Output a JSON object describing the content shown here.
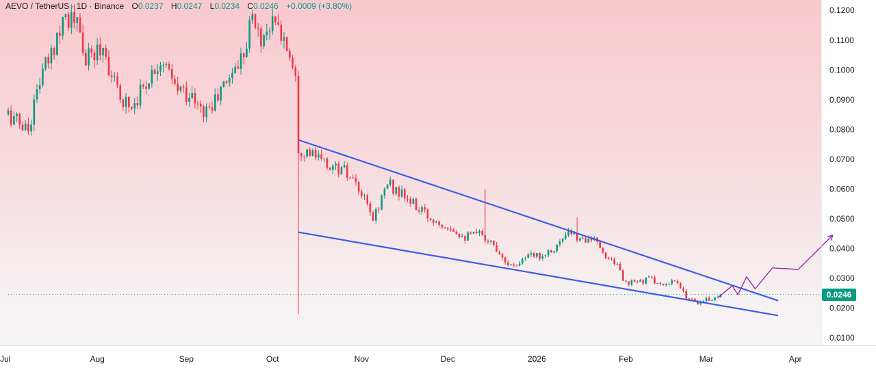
{
  "legend": {
    "symbol": "AEVO / TetherUS · 1D · Binance",
    "o_label": "O",
    "o_value": "0.0237",
    "h_label": "H",
    "h_value": "0.0247",
    "l_label": "L",
    "l_value": "0.0234",
    "c_label": "C",
    "c_value": "0.0246",
    "change": "+0.0009 (+3.80%)"
  },
  "last_price": "0.0246",
  "colors": {
    "up": "#089981",
    "down": "#f23645",
    "trendline": "#3d5ce6",
    "projection": "#9c27b0",
    "badge": "#089981"
  },
  "chart_data": {
    "type": "candlestick",
    "interval": "1D",
    "x_range": [
      "2025-07-01",
      "2026-04-10"
    ],
    "ylim": [
      0.0075,
      0.1235
    ],
    "y_ticks": [
      0.12,
      0.11,
      0.1,
      0.09,
      0.08,
      0.07,
      0.06,
      0.05,
      0.04,
      0.03,
      0.02,
      0.01
    ],
    "y_tick_labels": [
      "0.1200",
      "0.1100",
      "0.1000",
      "0.0900",
      "0.0800",
      "0.0700",
      "0.0600",
      "0.0500",
      "0.0400",
      "0.0300",
      "0.0200",
      "0.0100"
    ],
    "x_ticks": [
      {
        "label": "Jul",
        "date": "2025-07-01"
      },
      {
        "label": "Aug",
        "date": "2025-08-01"
      },
      {
        "label": "Sep",
        "date": "2025-09-01"
      },
      {
        "label": "Oct",
        "date": "2025-10-01"
      },
      {
        "label": "Nov",
        "date": "2025-11-01"
      },
      {
        "label": "Dec",
        "date": "2025-12-01"
      },
      {
        "label": "2026",
        "date": "2026-01-01"
      },
      {
        "label": "Feb",
        "date": "2026-02-01"
      },
      {
        "label": "Mar",
        "date": "2026-03-01"
      },
      {
        "label": "Apr",
        "date": "2026-04-01"
      }
    ],
    "close_path": [
      [
        "2025-07-01",
        0.085
      ],
      [
        "2025-07-08",
        0.08
      ],
      [
        "2025-07-12",
        0.097
      ],
      [
        "2025-07-16",
        0.105
      ],
      [
        "2025-07-20",
        0.119
      ],
      [
        "2025-07-25",
        0.115
      ],
      [
        "2025-07-28",
        0.103
      ],
      [
        "2025-08-03",
        0.108
      ],
      [
        "2025-08-08",
        0.092
      ],
      [
        "2025-08-13",
        0.088
      ],
      [
        "2025-08-18",
        0.096
      ],
      [
        "2025-08-23",
        0.104
      ],
      [
        "2025-08-28",
        0.094
      ],
      [
        "2025-09-02",
        0.092
      ],
      [
        "2025-09-06",
        0.086
      ],
      [
        "2025-09-10",
        0.088
      ],
      [
        "2025-09-16",
        0.098
      ],
      [
        "2025-09-20",
        0.104
      ],
      [
        "2025-09-24",
        0.118
      ],
      [
        "2025-09-27",
        0.11
      ],
      [
        "2025-09-30",
        0.116
      ],
      [
        "2025-10-03",
        0.114
      ],
      [
        "2025-10-06",
        0.108
      ],
      [
        "2025-10-09",
        0.1
      ],
      [
        "2025-10-10",
        0.074
      ],
      [
        "2025-10-14",
        0.072
      ],
      [
        "2025-10-20",
        0.068
      ],
      [
        "2025-10-26",
        0.066
      ],
      [
        "2025-11-01",
        0.058
      ],
      [
        "2025-11-05",
        0.05
      ],
      [
        "2025-11-10",
        0.062
      ],
      [
        "2025-11-15",
        0.058
      ],
      [
        "2025-11-20",
        0.054
      ],
      [
        "2025-11-25",
        0.05
      ],
      [
        "2025-12-01",
        0.048
      ],
      [
        "2025-12-07",
        0.044
      ],
      [
        "2025-12-13",
        0.045
      ],
      [
        "2025-12-19",
        0.039
      ],
      [
        "2025-12-23",
        0.034
      ],
      [
        "2025-12-28",
        0.037
      ],
      [
        "2026-01-03",
        0.038
      ],
      [
        "2026-01-08",
        0.041
      ],
      [
        "2026-01-12",
        0.045
      ],
      [
        "2026-01-16",
        0.043
      ],
      [
        "2026-01-20",
        0.044
      ],
      [
        "2026-01-24",
        0.038
      ],
      [
        "2026-01-28",
        0.036
      ],
      [
        "2026-02-01",
        0.028
      ],
      [
        "2026-02-06",
        0.029
      ],
      [
        "2026-02-10",
        0.03
      ],
      [
        "2026-02-14",
        0.027
      ],
      [
        "2026-02-18",
        0.029
      ],
      [
        "2026-02-22",
        0.024
      ],
      [
        "2026-02-26",
        0.022
      ],
      [
        "2026-03-02",
        0.023
      ],
      [
        "2026-03-06",
        0.0246
      ]
    ],
    "notable_wicks": [
      {
        "date": "2025-10-10",
        "low": 0.018
      },
      {
        "date": "2025-12-14",
        "high": 0.06
      },
      {
        "date": "2026-01-15",
        "high": 0.0505
      }
    ],
    "trendlines": [
      {
        "name": "upper",
        "points": [
          [
            "2025-10-10",
            0.0765
          ],
          [
            "2026-03-26",
            0.0225
          ]
        ]
      },
      {
        "name": "lower",
        "points": [
          [
            "2025-10-10",
            0.0455
          ],
          [
            "2026-03-26",
            0.0175
          ]
        ]
      }
    ],
    "projection_path": [
      [
        "2026-03-05",
        0.0235
      ],
      [
        "2026-03-10",
        0.0275
      ],
      [
        "2026-03-12",
        0.0245
      ],
      [
        "2026-03-15",
        0.0305
      ],
      [
        "2026-03-18",
        0.0265
      ],
      [
        "2026-03-24",
        0.0335
      ],
      [
        "2026-04-02",
        0.033
      ],
      [
        "2026-04-14",
        0.0445
      ]
    ],
    "last_price": 0.0246
  }
}
